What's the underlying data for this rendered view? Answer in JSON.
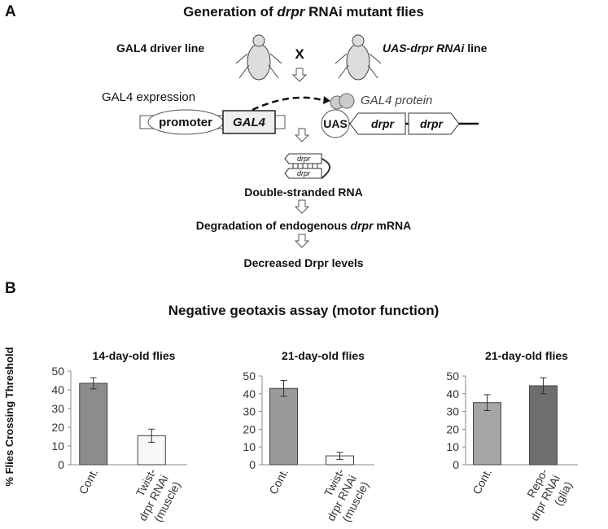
{
  "panel_a": {
    "label": "A",
    "title": [
      "Generation of ",
      "drpr",
      " RNAi mutant flies"
    ],
    "driver_line": "GAL4 driver line",
    "cross": "X",
    "uas_line": [
      "UAS-drpr RNAi",
      " line"
    ],
    "gal4_expression": "GAL4 expression",
    "promoter": "promoter",
    "gal4": "GAL4",
    "gal4_protein": "GAL4 protein",
    "uas": "UAS",
    "drpr": "drpr",
    "dsrna": "Double-stranded RNA",
    "degradation": [
      "Degradation of endogenous ",
      "drpr",
      " mRNA"
    ],
    "decreased": "Decreased Drpr levels"
  },
  "panel_b": {
    "label": "B",
    "title": "Negative geotaxis assay (motor function)",
    "y_axis_label": "% Flies Crossing Threshold"
  },
  "chart_data": [
    {
      "type": "bar",
      "title": "14-day-old flies",
      "categories": [
        [
          "Cont."
        ],
        [
          "Twist-",
          "drpr RNAi",
          "(muscle)"
        ]
      ],
      "values": [
        43.5,
        15.5
      ],
      "errors": [
        3,
        3.5
      ],
      "colors": [
        "#8c8c8c",
        "#f8f8f8"
      ],
      "ylim": [
        0,
        50
      ],
      "yticks": [
        0,
        10,
        20,
        30,
        40,
        50
      ]
    },
    {
      "type": "bar",
      "title": "21-day-old flies",
      "categories": [
        [
          "Cont."
        ],
        [
          "Twist-",
          "drpr RNAi",
          "(muscle)"
        ]
      ],
      "values": [
        43,
        5
      ],
      "errors": [
        4.5,
        2
      ],
      "colors": [
        "#999999",
        "#f8f8f8"
      ],
      "ylim": [
        0,
        50
      ],
      "yticks": [
        0,
        10,
        20,
        30,
        40,
        50
      ]
    },
    {
      "type": "bar",
      "title": "21-day-old flies",
      "categories": [
        [
          "Cont."
        ],
        [
          "Repo-",
          "drpr RNAi",
          "(glia)"
        ]
      ],
      "values": [
        35,
        44.5
      ],
      "errors": [
        4.5,
        4.5
      ],
      "colors": [
        "#a6a6a6",
        "#6e6e6e"
      ],
      "ylim": [
        0,
        50
      ],
      "yticks": [
        0,
        10,
        20,
        30,
        40,
        50
      ]
    }
  ]
}
